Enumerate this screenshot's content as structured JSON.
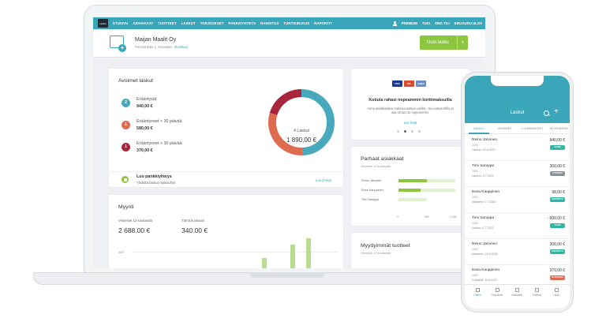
{
  "app": {
    "logo_text": "Laskut",
    "nav": [
      "ETUSIVU",
      "ASIAKKAAT",
      "TUOTTEET",
      "LASKUT",
      "TARJOUKSET",
      "PANKKIYHTEYS",
      "RAHOITUS",
      "TUNTIKIRJAUS",
      "RAPORTIT"
    ],
    "nav_right": [
      "PREMIUM",
      "TUKI",
      "OMA TILI",
      "KIRJAUDU ULOS"
    ]
  },
  "company": {
    "name": "Maijan Maalit Oy",
    "address": "Porvoonkatu 1, Kouvolan",
    "edit_link": "Muokkaa",
    "new_invoice": "Uusi lasku",
    "caret": "▾"
  },
  "open_invoices": {
    "title": "Avoimet laskut",
    "rows": [
      {
        "badge": "2",
        "label": "Erääntyvät",
        "amount": "940,00 €",
        "color": "#47a9bb"
      },
      {
        "badge": "1",
        "label": "Erääntyneet < 30 päivää",
        "amount": "580,00 €",
        "color": "#de6b4f"
      },
      {
        "badge": "1",
        "label": "Erääntyneet > 30 päivää",
        "amount": "370,00 €",
        "color": "#a8263b"
      }
    ],
    "donut_count": "4 Laskut",
    "donut_total": "1 890,00 €",
    "bank_title": "Luo pankkiyhteys",
    "bank_sub": "Yhdistä laskut maksuihin",
    "bank_link": "Luo yhteys"
  },
  "sales": {
    "title": "Myynti",
    "last12_label": "Viimeiset 12 kuukautta",
    "last12_value": "2 688.00 €",
    "this_month_label": "Tämä kuukausi",
    "this_month_value": "340.00 €",
    "axis_label": "400"
  },
  "payment_card": {
    "cards": [
      "VISA",
      "MC",
      "AMEX"
    ],
    "title": "Kotiuta rahasi nopeammin korttimaksuilla",
    "text": "Anna asiakkaidesi maksaa laskusi parilla - tai luottokortilla ja saa rahasi 3x nopeammin.",
    "link": "Lue lisää"
  },
  "best_customers": {
    "title": "Parhaat asiakkaat",
    "subtitle": "Viimeiset 12 kuukautta",
    "names": [
      "Reino Järvinen",
      "Eesa Kauppinen",
      "Timi Samppa"
    ],
    "ticks": [
      "0",
      "500",
      "1,000"
    ]
  },
  "top_products": {
    "title": "Myydyimmät tuotteet",
    "subtitle": "Viimeiset 12 kuukautta"
  },
  "phone": {
    "title": "Laskut",
    "tabs": [
      "KAIKKI",
      "AVOIMET",
      "LUONNOKSET",
      "MYÖHÄSSÄ"
    ],
    "rows": [
      {
        "name": "Reino Järvinen",
        "num": "1003",
        "due": "Laskuu: 22.8.2022",
        "amount": "940,00 €",
        "badge": "AVOIN",
        "badge_color": "#2fb6a7"
      },
      {
        "name": "Timi Samppa",
        "num": "1002",
        "due": "Laskuu: 9.7.2022",
        "amount": "360,00 €",
        "badge": "LUONNOS",
        "badge_color": "#8a9299"
      },
      {
        "name": "Eesa Kauppinen",
        "num": "1002",
        "due": "Maksettu: 7.7.2022",
        "amount": "98,00 €",
        "badge": "MAKSETTU",
        "badge_color": "#2fb6a7"
      },
      {
        "name": "Timi Samppa",
        "num": "1004",
        "due": "Laskuu: 1.7.2022",
        "amount": "- 600,00 €",
        "badge": "AVOIN",
        "badge_color": "#2fb6a7"
      },
      {
        "name": "Reino Järvinen",
        "num": "1003",
        "due": "Maksettu: 20.5.2022",
        "amount": "300,00 €",
        "badge": "MAKSETTU",
        "badge_color": "#2fb6a7"
      },
      {
        "name": "Eesa Kauppinen",
        "num": "1002",
        "due": "Eräpäivä: 13.5.2022",
        "amount": "370,00 €",
        "badge": "MYÖHÄSSÄ",
        "badge_color": "#de6b4f"
      }
    ],
    "bottom": [
      "Laskut",
      "Tarjoukset",
      "Asiakkaat",
      "Tuotteet",
      "Lisää"
    ]
  }
}
